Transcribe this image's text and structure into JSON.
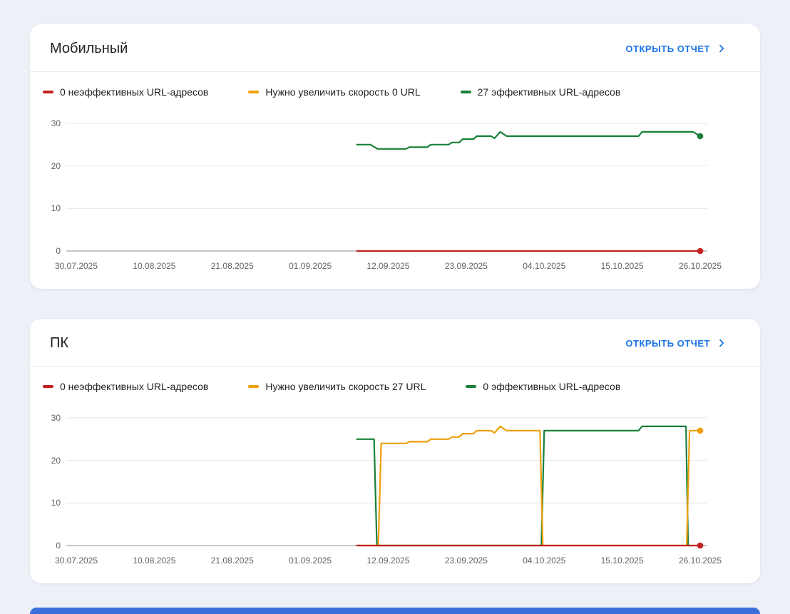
{
  "page": {
    "background": "#edf0f7"
  },
  "bottom_bar": {
    "color": "#3d6edc"
  },
  "cards": [
    {
      "title": "Мобильный",
      "action_label": "ОТКРЫТЬ ОТЧЕТ",
      "legend": [
        {
          "label": "0 неэффективных URL-адресов",
          "color": "#c5221f"
        },
        {
          "label": "Нужно увеличить скорость 0 URL",
          "color": "#efa00b"
        },
        {
          "label": "27 эффективных URL-адресов",
          "color": "#188038"
        }
      ],
      "chart_data": {
        "type": "line",
        "ylim": [
          0,
          30
        ],
        "y_ticks": [
          0,
          10,
          20,
          30
        ],
        "x_ticks": [
          "30.07.2025",
          "10.08.2025",
          "21.08.2025",
          "01.09.2025",
          "12.09.2025",
          "23.09.2025",
          "04.10.2025",
          "15.10.2025",
          "26.10.2025"
        ],
        "x_tick_days": [
          0,
          11,
          22,
          33,
          44,
          55,
          66,
          77,
          88
        ],
        "series": [
          {
            "name": "Нужно увеличить скорость",
            "color": "#efa00b",
            "end_dot": false,
            "points": []
          },
          {
            "name": "Эффективные URL-адреса",
            "color": "#188038",
            "end_dot": true,
            "points": [
              [
                39.5,
                25
              ],
              [
                41.5,
                25
              ],
              [
                42.5,
                24
              ],
              [
                46.5,
                24
              ],
              [
                47,
                24.4
              ],
              [
                49.5,
                24.4
              ],
              [
                50,
                25
              ],
              [
                52.5,
                25
              ],
              [
                53,
                25.5
              ],
              [
                54,
                25.5
              ],
              [
                54.5,
                26.3
              ],
              [
                56,
                26.3
              ],
              [
                56.5,
                27
              ],
              [
                58.5,
                27
              ],
              [
                59,
                26.5
              ],
              [
                59.8,
                28
              ],
              [
                60.7,
                27
              ],
              [
                79.3,
                27
              ],
              [
                79.8,
                28
              ],
              [
                87,
                28
              ],
              [
                88,
                27
              ]
            ]
          },
          {
            "name": "Неэффективные URL-адреса",
            "color": "#c5221f",
            "end_dot": true,
            "points": [
              [
                39.5,
                0
              ],
              [
                88,
                0
              ]
            ]
          }
        ]
      }
    },
    {
      "title": "ПК",
      "action_label": "ОТКРЫТЬ ОТЧЕТ",
      "legend": [
        {
          "label": "0 неэффективных URL-адресов",
          "color": "#c5221f"
        },
        {
          "label": "Нужно увеличить скорость 27 URL",
          "color": "#efa00b"
        },
        {
          "label": "0 эффективных URL-адресов",
          "color": "#188038"
        }
      ],
      "chart_data": {
        "type": "line",
        "ylim": [
          0,
          30
        ],
        "y_ticks": [
          0,
          10,
          20,
          30
        ],
        "x_ticks": [
          "30.07.2025",
          "10.08.2025",
          "21.08.2025",
          "01.09.2025",
          "12.09.2025",
          "23.09.2025",
          "04.10.2025",
          "15.10.2025",
          "26.10.2025"
        ],
        "x_tick_days": [
          0,
          11,
          22,
          33,
          44,
          55,
          66,
          77,
          88
        ],
        "series": [
          {
            "name": "Эффективные URL-адреса",
            "color": "#188038",
            "end_dot": false,
            "points": [
              [
                39.5,
                25
              ],
              [
                42,
                25
              ],
              [
                42.4,
                0
              ],
              [
                65.6,
                0
              ],
              [
                66,
                27
              ],
              [
                79.3,
                27
              ],
              [
                79.8,
                28
              ],
              [
                86,
                28
              ],
              [
                86.3,
                0
              ],
              [
                86.8,
                0
              ]
            ]
          },
          {
            "name": "Нужно увеличить скорость",
            "color": "#efa00b",
            "end_dot": true,
            "points": [
              [
                39.5,
                0
              ],
              [
                42.6,
                0
              ],
              [
                43,
                24
              ],
              [
                46.5,
                24
              ],
              [
                47,
                24.4
              ],
              [
                49.5,
                24.4
              ],
              [
                50,
                25
              ],
              [
                52.5,
                25
              ],
              [
                53,
                25.5
              ],
              [
                54,
                25.5
              ],
              [
                54.5,
                26.3
              ],
              [
                56,
                26.3
              ],
              [
                56.5,
                27
              ],
              [
                58.5,
                27
              ],
              [
                59,
                26.5
              ],
              [
                59.8,
                28
              ],
              [
                60.7,
                27
              ],
              [
                65.4,
                27
              ],
              [
                65.8,
                0
              ],
              [
                86.1,
                0
              ],
              [
                86.5,
                27
              ],
              [
                88,
                27
              ]
            ]
          },
          {
            "name": "Неэффективные URL-адреса",
            "color": "#c5221f",
            "end_dot": true,
            "points": [
              [
                39.5,
                0
              ],
              [
                88,
                0
              ]
            ]
          }
        ]
      }
    }
  ]
}
